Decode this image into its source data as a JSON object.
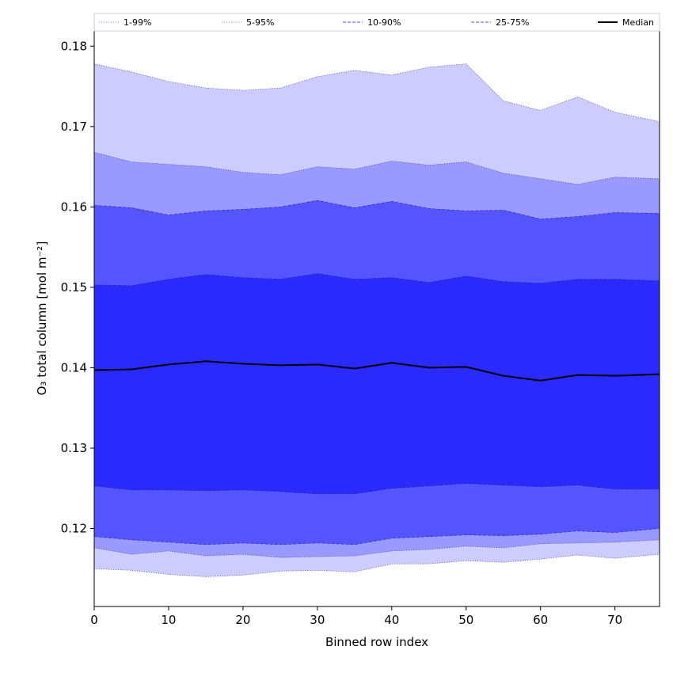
{
  "chart_data": {
    "type": "area",
    "xlabel": "Binned row index",
    "ylabel": "O₃ total column [mol m⁻²]",
    "xlim": [
      0,
      76
    ],
    "ylim": [
      0.1103,
      0.1819
    ],
    "xticks": [
      0,
      10,
      20,
      30,
      40,
      50,
      60,
      70
    ],
    "xtick_labels": [
      "0",
      "10",
      "20",
      "30",
      "40",
      "50",
      "60",
      "70"
    ],
    "yticks": [
      0.12,
      0.13,
      0.14,
      0.15,
      0.16,
      0.17,
      0.18
    ],
    "ytick_labels": [
      "0.12",
      "0.13",
      "0.14",
      "0.15",
      "0.16",
      "0.17",
      "0.18"
    ],
    "legend_position": "top, spanning width",
    "x": [
      0,
      5,
      10,
      15,
      20,
      25,
      30,
      35,
      40,
      45,
      50,
      55,
      60,
      65,
      70,
      76
    ],
    "series": [
      {
        "name": "1-99%",
        "color": "#ccccff",
        "line_style": "dotted",
        "lower": [
          0.115,
          0.1148,
          0.1143,
          0.114,
          0.1142,
          0.1147,
          0.1148,
          0.1146,
          0.1156,
          0.1156,
          0.116,
          0.1158,
          0.1162,
          0.1167,
          0.1163,
          0.1168
        ],
        "upper": [
          0.1778,
          0.1768,
          0.1756,
          0.1748,
          0.1745,
          0.1748,
          0.1762,
          0.177,
          0.1764,
          0.1774,
          0.1778,
          0.1732,
          0.172,
          0.1737,
          0.1718,
          0.1706
        ]
      },
      {
        "name": "5-95%",
        "color": "#9999ff",
        "line_style": "dotted",
        "lower": [
          0.1176,
          0.1168,
          0.1172,
          0.1166,
          0.1168,
          0.1164,
          0.1165,
          0.1166,
          0.1172,
          0.1174,
          0.1178,
          0.1176,
          0.1181,
          0.1182,
          0.1183,
          0.1186
        ],
        "upper": [
          0.1668,
          0.1656,
          0.1653,
          0.165,
          0.1643,
          0.164,
          0.165,
          0.1647,
          0.1657,
          0.1652,
          0.1656,
          0.1642,
          0.1635,
          0.1628,
          0.1637,
          0.1635
        ]
      },
      {
        "name": "10-90%",
        "color": "#5555ff",
        "line_style": "dashed",
        "lower": [
          0.119,
          0.1186,
          0.1183,
          0.118,
          0.1182,
          0.118,
          0.1182,
          0.118,
          0.1188,
          0.119,
          0.1192,
          0.1191,
          0.1193,
          0.1197,
          0.1195,
          0.12
        ],
        "upper": [
          0.1602,
          0.1599,
          0.159,
          0.1595,
          0.1597,
          0.16,
          0.1608,
          0.1599,
          0.1607,
          0.1598,
          0.1595,
          0.1596,
          0.1585,
          0.1588,
          0.1593,
          0.1592
        ]
      },
      {
        "name": "25-75%",
        "color": "#2a2aff",
        "line_style": "dashed",
        "lower": [
          0.1253,
          0.1248,
          0.1248,
          0.1247,
          0.1248,
          0.1246,
          0.1243,
          0.1243,
          0.125,
          0.1253,
          0.1256,
          0.1254,
          0.1252,
          0.1254,
          0.1249,
          0.1249
        ],
        "upper": [
          0.1503,
          0.1502,
          0.151,
          0.1516,
          0.1512,
          0.151,
          0.1517,
          0.151,
          0.1512,
          0.1506,
          0.1514,
          0.1507,
          0.1505,
          0.151,
          0.151,
          0.1508
        ]
      },
      {
        "name": "Median",
        "color": "#000000",
        "line_style": "solid",
        "values": [
          0.1397,
          0.1398,
          0.1404,
          0.1408,
          0.1405,
          0.1403,
          0.1404,
          0.1399,
          0.1406,
          0.14,
          0.1401,
          0.139,
          0.1384,
          0.1391,
          0.139,
          0.1392
        ]
      }
    ]
  }
}
